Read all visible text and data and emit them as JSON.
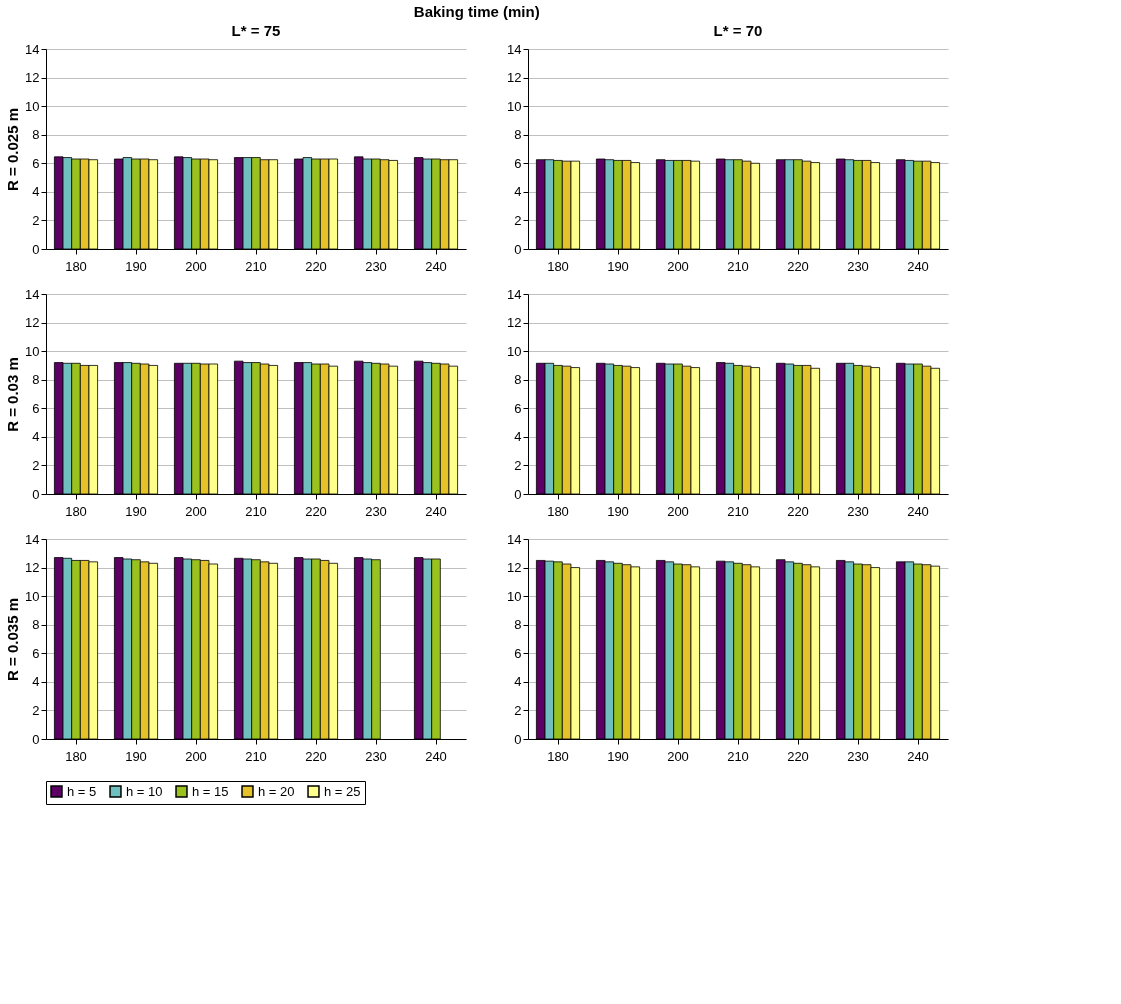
{
  "chart_data": [
    {
      "type": "bar",
      "title": "L* = 75",
      "ylabel": "R = 0.025 m",
      "annotations": [
        "Baking time (min)"
      ],
      "categories": [
        "180",
        "190",
        "200",
        "210",
        "220",
        "230",
        "240"
      ],
      "ylim": [
        0,
        14
      ],
      "yticks": [
        0,
        2,
        4,
        6,
        8,
        10,
        12,
        14
      ],
      "grid": "y",
      "legend": "bottom",
      "series": [
        {
          "name": "h = 5",
          "color": "#5c0066",
          "values": [
            6.45,
            6.3,
            6.45,
            6.4,
            6.3,
            6.45,
            6.4
          ]
        },
        {
          "name": "h = 10",
          "color": "#6fbfbf",
          "values": [
            6.4,
            6.4,
            6.4,
            6.4,
            6.4,
            6.3,
            6.3
          ]
        },
        {
          "name": "h = 15",
          "color": "#99c21f",
          "values": [
            6.3,
            6.3,
            6.3,
            6.4,
            6.3,
            6.3,
            6.3
          ]
        },
        {
          "name": "h = 20",
          "color": "#e6c229",
          "values": [
            6.3,
            6.3,
            6.3,
            6.25,
            6.3,
            6.25,
            6.25
          ]
        },
        {
          "name": "h = 25",
          "color": "#ffff8c",
          "values": [
            6.25,
            6.25,
            6.25,
            6.25,
            6.3,
            6.2,
            6.25
          ]
        }
      ]
    },
    {
      "type": "bar",
      "title": "L* = 70",
      "categories": [
        "180",
        "190",
        "200",
        "210",
        "220",
        "230",
        "240"
      ],
      "ylim": [
        0,
        14
      ],
      "yticks": [
        0,
        2,
        4,
        6,
        8,
        10,
        12,
        14
      ],
      "grid": "y",
      "legend": "bottom",
      "series": [
        {
          "name": "h = 5",
          "color": "#5c0066",
          "values": [
            6.25,
            6.3,
            6.25,
            6.3,
            6.25,
            6.3,
            6.25
          ]
        },
        {
          "name": "h = 10",
          "color": "#6fbfbf",
          "values": [
            6.25,
            6.25,
            6.2,
            6.25,
            6.25,
            6.25,
            6.2
          ]
        },
        {
          "name": "h = 15",
          "color": "#99c21f",
          "values": [
            6.2,
            6.2,
            6.2,
            6.25,
            6.25,
            6.2,
            6.15
          ]
        },
        {
          "name": "h = 20",
          "color": "#e6c229",
          "values": [
            6.15,
            6.2,
            6.2,
            6.15,
            6.15,
            6.2,
            6.15
          ]
        },
        {
          "name": "h = 25",
          "color": "#ffff8c",
          "values": [
            6.15,
            6.05,
            6.15,
            6.0,
            6.05,
            6.05,
            6.05
          ]
        }
      ]
    },
    {
      "type": "bar",
      "ylabel": "R = 0.03 m",
      "categories": [
        "180",
        "190",
        "200",
        "210",
        "220",
        "230",
        "240"
      ],
      "ylim": [
        0,
        14
      ],
      "yticks": [
        0,
        2,
        4,
        6,
        8,
        10,
        12,
        14
      ],
      "grid": "y",
      "legend": "bottom",
      "series": [
        {
          "name": "h = 5",
          "color": "#5c0066",
          "values": [
            9.2,
            9.2,
            9.15,
            9.3,
            9.2,
            9.3,
            9.3
          ]
        },
        {
          "name": "h = 10",
          "color": "#6fbfbf",
          "values": [
            9.15,
            9.2,
            9.15,
            9.2,
            9.2,
            9.2,
            9.2
          ]
        },
        {
          "name": "h = 15",
          "color": "#99c21f",
          "values": [
            9.15,
            9.15,
            9.15,
            9.2,
            9.1,
            9.15,
            9.15
          ]
        },
        {
          "name": "h = 20",
          "color": "#e6c229",
          "values": [
            9.0,
            9.1,
            9.1,
            9.1,
            9.1,
            9.1,
            9.1
          ]
        },
        {
          "name": "h = 25",
          "color": "#ffff8c",
          "values": [
            9.0,
            9.0,
            9.1,
            9.0,
            8.95,
            8.95,
            8.95
          ]
        }
      ]
    },
    {
      "type": "bar",
      "categories": [
        "180",
        "190",
        "200",
        "210",
        "220",
        "230",
        "240"
      ],
      "ylim": [
        0,
        14
      ],
      "yticks": [
        0,
        2,
        4,
        6,
        8,
        10,
        12,
        14
      ],
      "grid": "y",
      "legend": "bottom",
      "series": [
        {
          "name": "h = 5",
          "color": "#5c0066",
          "values": [
            9.15,
            9.15,
            9.15,
            9.2,
            9.15,
            9.15,
            9.15
          ]
        },
        {
          "name": "h = 10",
          "color": "#6fbfbf",
          "values": [
            9.15,
            9.1,
            9.1,
            9.15,
            9.1,
            9.15,
            9.1
          ]
        },
        {
          "name": "h = 15",
          "color": "#99c21f",
          "values": [
            9.0,
            9.0,
            9.1,
            9.0,
            9.0,
            9.0,
            9.1
          ]
        },
        {
          "name": "h = 20",
          "color": "#e6c229",
          "values": [
            8.95,
            8.95,
            8.95,
            8.95,
            9.0,
            8.95,
            8.95
          ]
        },
        {
          "name": "h = 25",
          "color": "#ffff8c",
          "values": [
            8.85,
            8.85,
            8.85,
            8.85,
            8.8,
            8.85,
            8.8
          ]
        }
      ]
    },
    {
      "type": "bar",
      "ylabel": "R = 0.035 m",
      "categories": [
        "180",
        "190",
        "200",
        "210",
        "220",
        "230",
        "240"
      ],
      "ylim": [
        0,
        14
      ],
      "yticks": [
        0,
        2,
        4,
        6,
        8,
        10,
        12,
        14
      ],
      "grid": "y",
      "legend": "bottom",
      "series": [
        {
          "name": "h = 5",
          "color": "#5c0066",
          "values": [
            12.7,
            12.7,
            12.7,
            12.65,
            12.7,
            12.7,
            12.7
          ]
        },
        {
          "name": "h = 10",
          "color": "#6fbfbf",
          "values": [
            12.65,
            12.6,
            12.6,
            12.6,
            12.6,
            12.6,
            12.6
          ]
        },
        {
          "name": "h = 15",
          "color": "#99c21f",
          "values": [
            12.5,
            12.55,
            12.55,
            12.55,
            12.6,
            12.55,
            12.6
          ]
        },
        {
          "name": "h = 20",
          "color": "#e6c229",
          "values": [
            12.5,
            12.4,
            12.5,
            12.4,
            12.5,
            null,
            null
          ]
        },
        {
          "name": "h = 25",
          "color": "#ffff8c",
          "values": [
            12.4,
            12.3,
            12.25,
            12.3,
            12.3,
            null,
            null
          ]
        }
      ]
    },
    {
      "type": "bar",
      "categories": [
        "180",
        "190",
        "200",
        "210",
        "220",
        "230",
        "240"
      ],
      "ylim": [
        0,
        14
      ],
      "yticks": [
        0,
        2,
        4,
        6,
        8,
        10,
        12,
        14
      ],
      "grid": "y",
      "legend": "bottom",
      "series": [
        {
          "name": "h = 5",
          "color": "#5c0066",
          "values": [
            12.5,
            12.5,
            12.5,
            12.45,
            12.55,
            12.5,
            12.4
          ]
        },
        {
          "name": "h = 10",
          "color": "#6fbfbf",
          "values": [
            12.45,
            12.4,
            12.4,
            12.4,
            12.4,
            12.4,
            12.4
          ]
        },
        {
          "name": "h = 15",
          "color": "#99c21f",
          "values": [
            12.4,
            12.3,
            12.25,
            12.3,
            12.3,
            12.25,
            12.25
          ]
        },
        {
          "name": "h = 20",
          "color": "#e6c229",
          "values": [
            12.25,
            12.2,
            12.2,
            12.2,
            12.2,
            12.2,
            12.2
          ]
        },
        {
          "name": "h = 25",
          "color": "#ffff8c",
          "values": [
            12.0,
            12.05,
            12.05,
            12.05,
            12.05,
            12.0,
            12.1
          ]
        }
      ]
    }
  ]
}
